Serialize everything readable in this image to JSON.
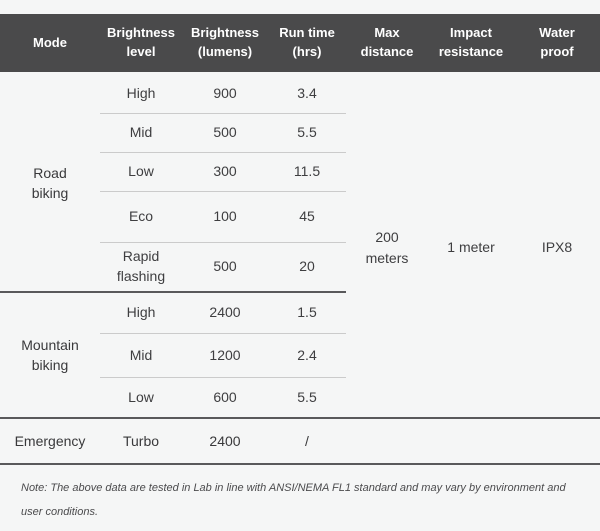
{
  "table": {
    "headers": {
      "mode": "Mode",
      "brightness_level": "Brightness level",
      "brightness_lumens": "Brightness (lumens)",
      "run_time": "Run time (hrs)",
      "max_distance": "Max distance",
      "impact_resistance": "Impact resistance",
      "water_proof": "Water proof"
    },
    "sections": [
      {
        "mode": "Road biking",
        "rows": [
          {
            "level": "High",
            "lumens": "900",
            "hours": "3.4"
          },
          {
            "level": "Mid",
            "lumens": "500",
            "hours": "5.5"
          },
          {
            "level": "Low",
            "lumens": "300",
            "hours": "11.5"
          },
          {
            "level": "Eco",
            "lumens": "100",
            "hours": "45"
          },
          {
            "level": "Rapid flashing",
            "lumens": "500",
            "hours": "20"
          }
        ]
      },
      {
        "mode": "Mountain biking",
        "rows": [
          {
            "level": "High",
            "lumens": "2400",
            "hours": "1.5"
          },
          {
            "level": "Mid",
            "lumens": "1200",
            "hours": "2.4"
          },
          {
            "level": "Low",
            "lumens": "600",
            "hours": "5.5"
          }
        ]
      }
    ],
    "emergency": {
      "mode": "Emergency",
      "level": "Turbo",
      "lumens": "2400",
      "hours": "/"
    },
    "shared": {
      "max_distance": "200 meters",
      "impact_resistance": "1 meter",
      "water_proof": "IPX8"
    }
  },
  "note": "Note: The above data are tested in Lab in line with ANSI/NEMA FL1 standard and may vary by environment and user conditions.",
  "colors": {
    "header_bg": "#4a4a4b",
    "header_text": "#ffffff",
    "body_text": "#3e3e40",
    "separator_light": "#cbcbcb",
    "separator_dark": "#59595b",
    "page_bg": "#f5f6f6"
  },
  "chart_data": {
    "type": "table",
    "title": "Bike light modes specification table",
    "columns": [
      "Mode",
      "Brightness level",
      "Brightness (lumens)",
      "Run time (hrs)",
      "Max distance",
      "Impact resistance",
      "Water proof"
    ],
    "rows": [
      [
        "Road biking",
        "High",
        900,
        3.4,
        "200 meters",
        "1 meter",
        "IPX8"
      ],
      [
        "Road biking",
        "Mid",
        500,
        5.5,
        "200 meters",
        "1 meter",
        "IPX8"
      ],
      [
        "Road biking",
        "Low",
        300,
        11.5,
        "200 meters",
        "1 meter",
        "IPX8"
      ],
      [
        "Road biking",
        "Eco",
        100,
        45,
        "200 meters",
        "1 meter",
        "IPX8"
      ],
      [
        "Road biking",
        "Rapid flashing",
        500,
        20,
        "200 meters",
        "1 meter",
        "IPX8"
      ],
      [
        "Mountain biking",
        "High",
        2400,
        1.5,
        "200 meters",
        "1 meter",
        "IPX8"
      ],
      [
        "Mountain biking",
        "Mid",
        1200,
        2.4,
        "200 meters",
        "1 meter",
        "IPX8"
      ],
      [
        "Mountain biking",
        "Low",
        600,
        5.5,
        "200 meters",
        "1 meter",
        "IPX8"
      ],
      [
        "Emergency",
        "Turbo",
        2400,
        "/",
        "",
        "",
        ""
      ]
    ],
    "footnote": "Note: The above data are tested in Lab in line with ANSI/NEMA FL1 standard and may vary by environment and user conditions."
  }
}
